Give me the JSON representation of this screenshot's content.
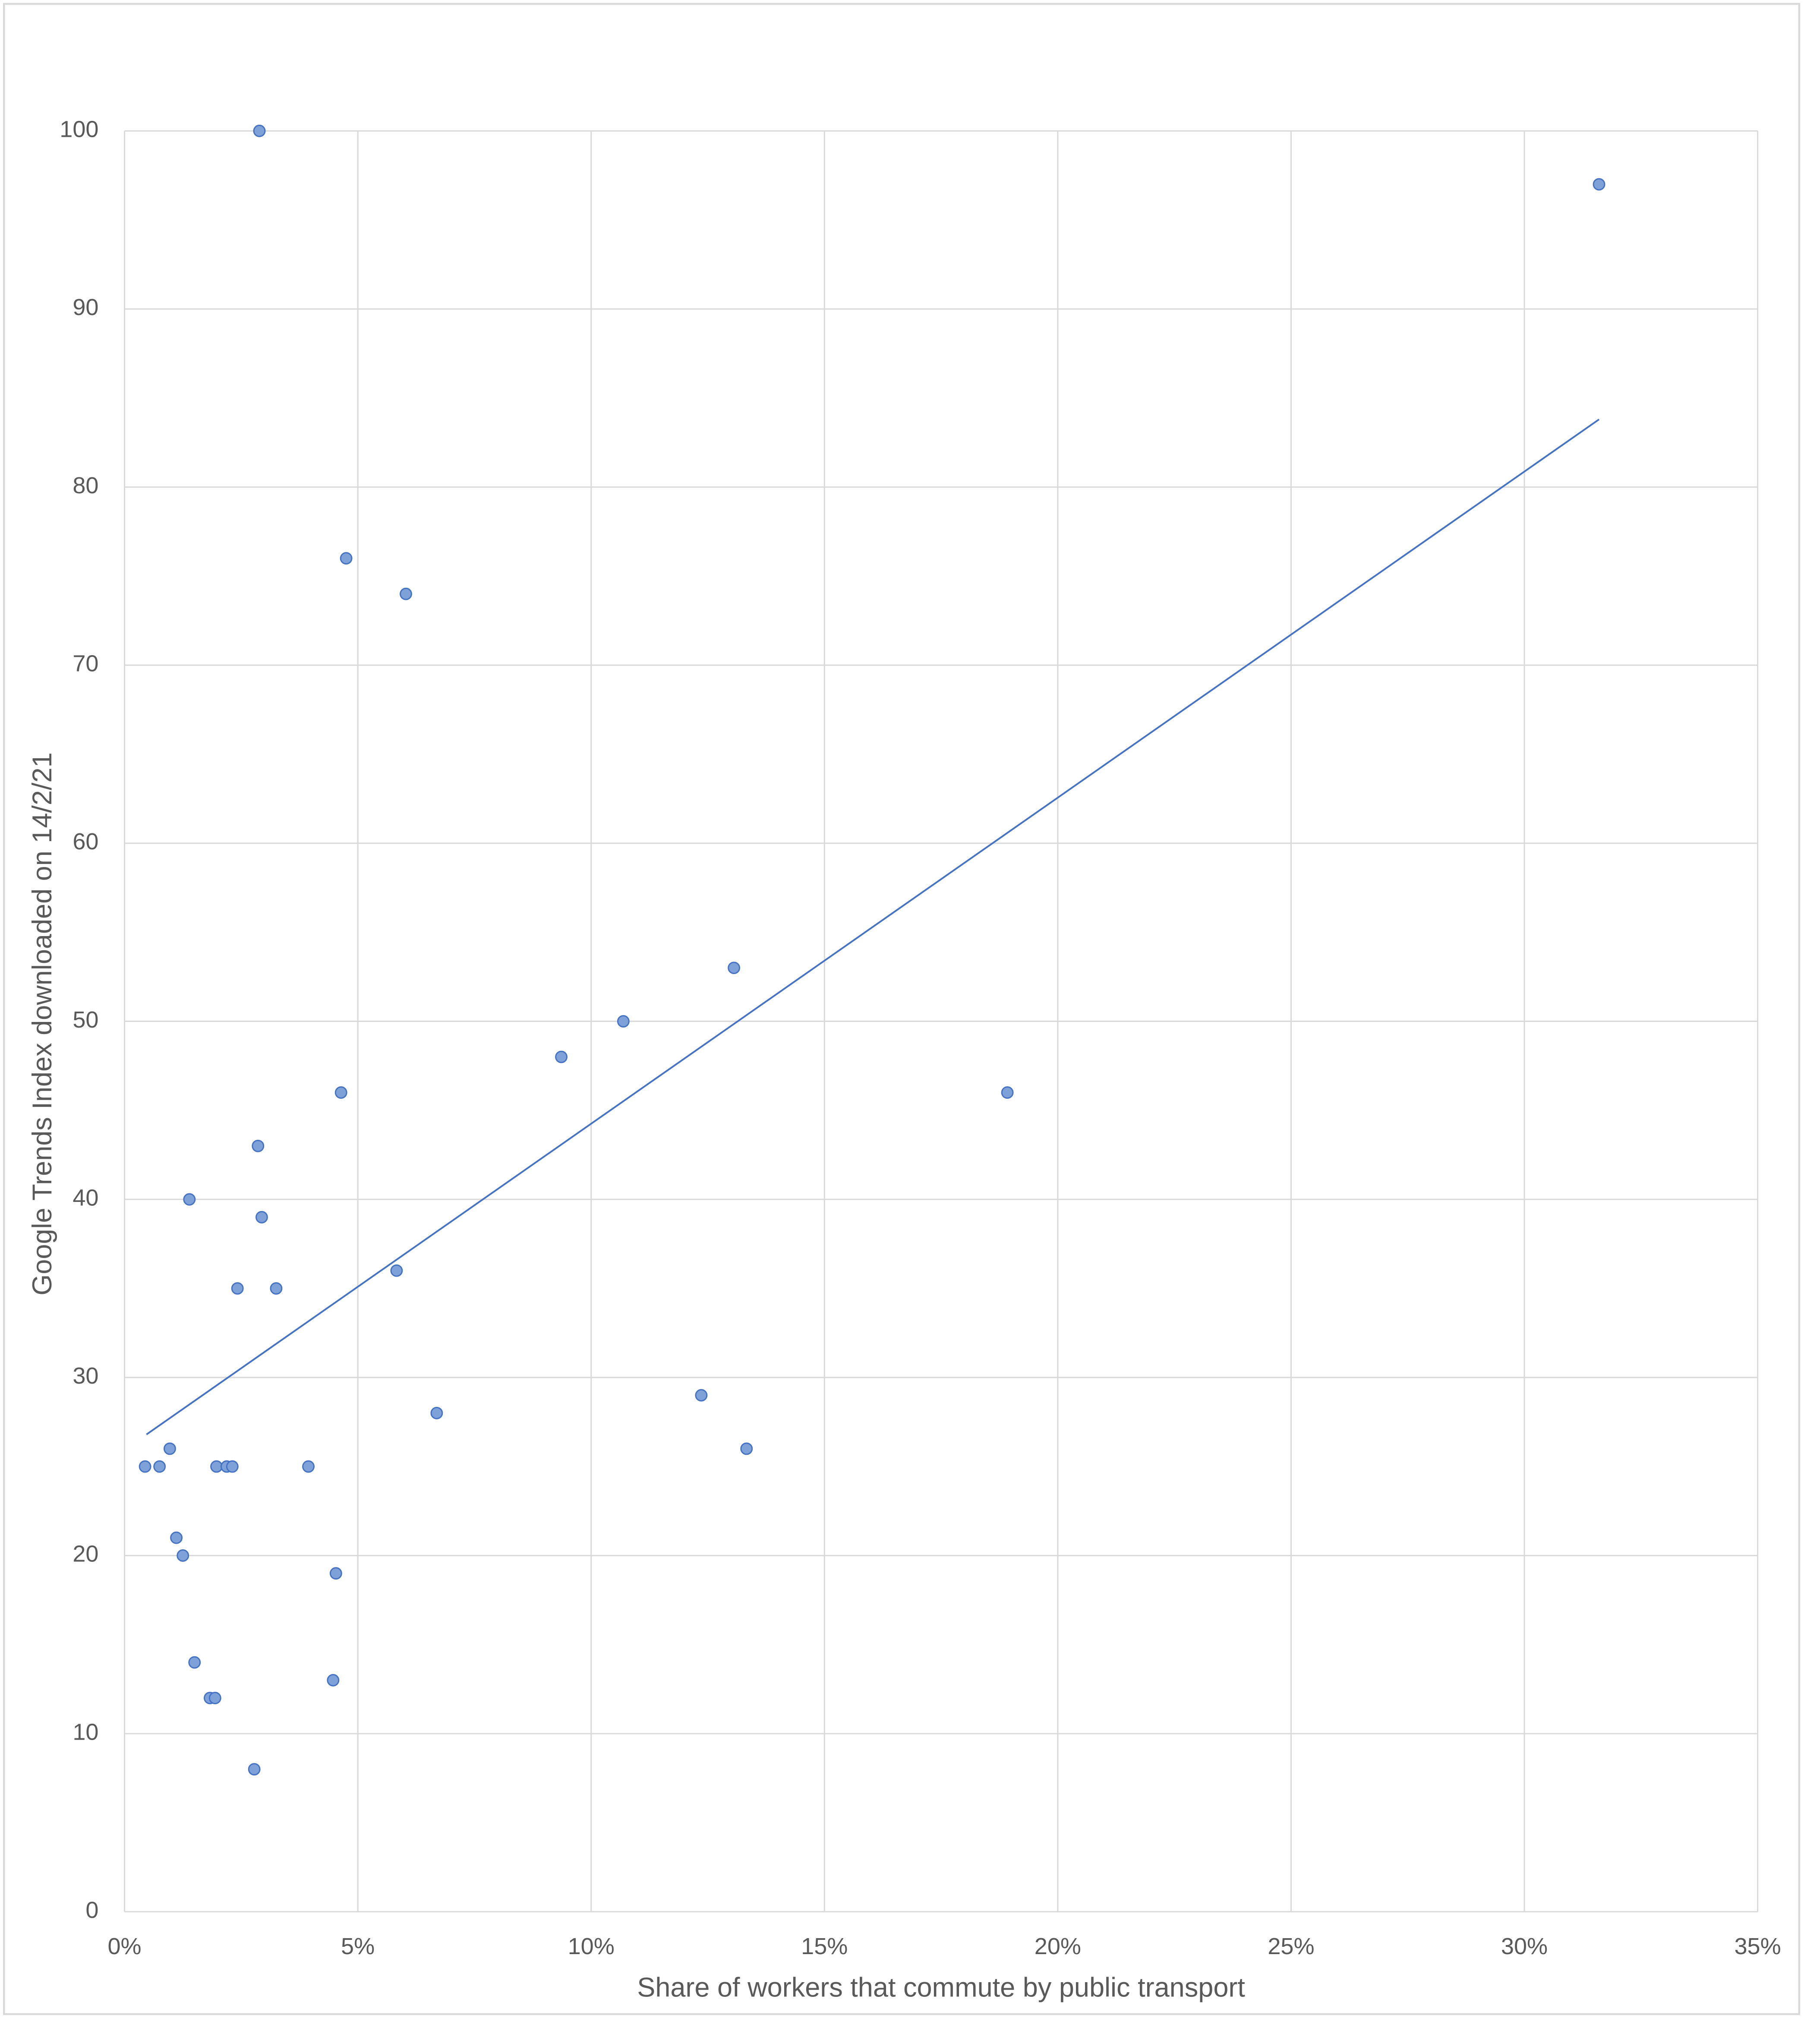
{
  "chart_data": {
    "type": "scatter",
    "x_label": "Share of workers that commute by public transport",
    "y_label": "Google Trends Index downloaded on 14/2/21",
    "x": [
      2.89,
      31.6,
      4.75,
      6.03,
      13.06,
      10.69,
      9.36,
      4.64,
      18.92,
      2.86,
      1.39,
      2.94,
      5.83,
      2.42,
      3.25,
      12.36,
      6.69,
      0.97,
      13.33,
      0.44,
      0.75,
      1.97,
      2.19,
      2.31,
      3.94,
      1.11,
      1.25,
      4.53,
      1.5,
      1.83,
      1.94,
      4.47,
      2.78
    ],
    "values": [
      100,
      97,
      76,
      74,
      53,
      50,
      48,
      46,
      46,
      43,
      40,
      39,
      36,
      35,
      35,
      29,
      28,
      26,
      26,
      25,
      25,
      25,
      25,
      25,
      25,
      21,
      20,
      19,
      14,
      12,
      12,
      13,
      8
    ],
    "color": "#7ea1d8",
    "trendline": {
      "x": [
        0.47,
        31.6
      ],
      "values": [
        26.8,
        83.8
      ],
      "color": "#4472c4"
    },
    "xlim": [
      0,
      35
    ],
    "xticks": [
      {
        "value": 0,
        "label": "0%"
      },
      {
        "value": 5,
        "label": "5%"
      },
      {
        "value": 10,
        "label": "10%"
      },
      {
        "value": 15,
        "label": "15%"
      },
      {
        "value": 20,
        "label": "20%"
      },
      {
        "value": 25,
        "label": "25%"
      },
      {
        "value": 30,
        "label": "30%"
      },
      {
        "value": 35,
        "label": "35%"
      }
    ],
    "ylim": [
      0,
      100
    ],
    "yticks": [
      0,
      10,
      20,
      30,
      40,
      50,
      60,
      70,
      80,
      90,
      100
    ],
    "grid": true
  }
}
